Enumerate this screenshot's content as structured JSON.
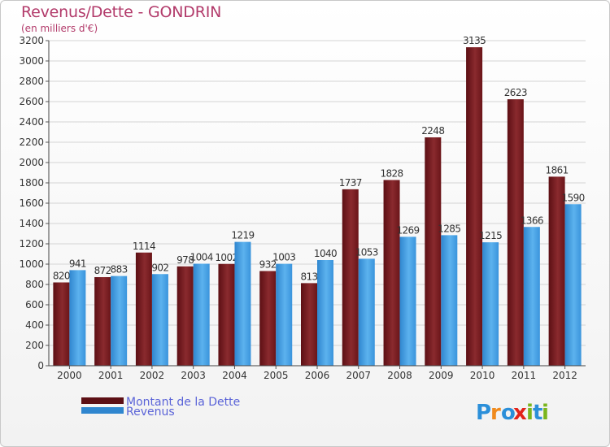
{
  "chart_data": {
    "type": "bar",
    "title": "Revenus/Dette - GONDRIN",
    "subtitle": "(en milliers d'€)",
    "categories": [
      "2000",
      "2001",
      "2002",
      "2003",
      "2004",
      "2005",
      "2006",
      "2007",
      "2008",
      "2009",
      "2010",
      "2011",
      "2012"
    ],
    "series": [
      {
        "name": "Montant de la Dette",
        "color": "#7a1a1e",
        "values": [
          820,
          872,
          1114,
          978,
          1002,
          932,
          813,
          1737,
          1828,
          2248,
          3135,
          2623,
          1861
        ]
      },
      {
        "name": "Revenus",
        "color": "#3d9be0",
        "values": [
          941,
          883,
          902,
          1004,
          1219,
          1003,
          1040,
          1053,
          1269,
          1285,
          1215,
          1366,
          1590
        ]
      }
    ],
    "ylim": [
      0,
      3200
    ],
    "yticks": [
      0,
      200,
      400,
      600,
      800,
      1000,
      1200,
      1400,
      1600,
      1800,
      2000,
      2200,
      2400,
      2600,
      2800,
      3000,
      3200
    ],
    "grid": true,
    "legend_position": "bottom-left"
  },
  "brand": {
    "letters": [
      "P",
      "r",
      "o",
      "x",
      "i",
      "t",
      "i"
    ],
    "colors": [
      "#2b8fd9",
      "#f08a1c",
      "#2b8fd9",
      "#e2231a",
      "#7ab51d",
      "#2b8fd9",
      "#7ab51d"
    ]
  }
}
